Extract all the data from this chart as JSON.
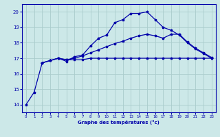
{
  "xlabel": "Graphe des températures (°c)",
  "bg_color": "#cce8e8",
  "grid_color": "#aacccc",
  "line_color": "#0000aa",
  "ylim": [
    13.5,
    20.5
  ],
  "xlim": [
    -0.5,
    23.5
  ],
  "yticks": [
    14,
    15,
    16,
    17,
    18,
    19,
    20
  ],
  "xticks": [
    0,
    1,
    2,
    3,
    4,
    5,
    6,
    7,
    8,
    9,
    10,
    11,
    12,
    13,
    14,
    15,
    16,
    17,
    18,
    19,
    20,
    21,
    22,
    23
  ],
  "line1_x": [
    0,
    1,
    2,
    3,
    4,
    5,
    6,
    7,
    8,
    9,
    10,
    11,
    12,
    13,
    14,
    15,
    16,
    17,
    18,
    19,
    20,
    21,
    22,
    23
  ],
  "line1_y": [
    14.0,
    14.8,
    16.7,
    16.85,
    17.0,
    16.8,
    17.1,
    17.2,
    17.8,
    18.3,
    18.5,
    19.3,
    19.5,
    19.9,
    19.9,
    20.0,
    19.5,
    19.0,
    18.8,
    18.5,
    18.0,
    17.6,
    17.3,
    17.0
  ],
  "line2_x": [
    2,
    3,
    4,
    5,
    6,
    7,
    8,
    9,
    10,
    11,
    12,
    13,
    14,
    15,
    16,
    17,
    18,
    19,
    20,
    21,
    22,
    23
  ],
  "line2_y": [
    16.7,
    16.85,
    17.0,
    16.9,
    16.9,
    16.9,
    17.0,
    17.0,
    17.0,
    17.0,
    17.0,
    17.0,
    17.0,
    17.0,
    17.0,
    17.0,
    17.0,
    17.0,
    17.0,
    17.0,
    17.0,
    17.0
  ],
  "line3_x": [
    2,
    3,
    4,
    5,
    6,
    7,
    8,
    9,
    10,
    11,
    12,
    13,
    14,
    15,
    16,
    17,
    18,
    19,
    20,
    21,
    22,
    23
  ],
  "line3_y": [
    16.7,
    16.85,
    17.0,
    16.9,
    17.0,
    17.15,
    17.35,
    17.55,
    17.75,
    17.95,
    18.1,
    18.3,
    18.45,
    18.55,
    18.45,
    18.3,
    18.55,
    18.55,
    18.05,
    17.65,
    17.35,
    17.05
  ]
}
